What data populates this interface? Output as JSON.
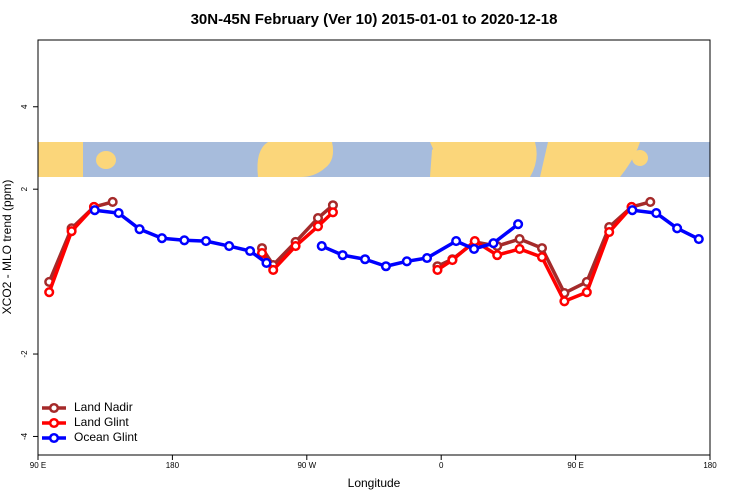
{
  "chart_data": {
    "type": "line",
    "title": "30N-45N February (Ver 10)   2015-01-01 to 2020-12-18",
    "xlabel": "Longitude",
    "ylabel": "XCO2 - MLO trend (ppm)",
    "xlim": [
      90,
      540
    ],
    "ylim": [
      -4.45,
      5.62
    ],
    "xticks": [
      {
        "value": 90,
        "label": "90 E"
      },
      {
        "value": 180,
        "label": "180"
      },
      {
        "value": 270,
        "label": "90 W"
      },
      {
        "value": 360,
        "label": "0"
      },
      {
        "value": 450,
        "label": "90 E"
      },
      {
        "value": 540,
        "label": "180"
      }
    ],
    "yticks": [
      -4,
      -2,
      2,
      4
    ],
    "legend_position": "bottomleft",
    "series": [
      {
        "name": "Land Nadir",
        "color": "#a52a2a",
        "x": [
          97.5,
          112.5,
          127.5,
          140,
          null,
          240,
          247.5,
          262.5,
          277.5,
          287.5,
          null,
          357.5,
          367.5,
          382.5,
          397.5,
          412.5,
          427.5,
          442.5,
          457.5,
          472.5,
          487.5,
          500
        ],
        "values": [
          -0.25,
          1.05,
          1.57,
          1.69,
          null,
          0.57,
          0.16,
          0.72,
          1.3,
          1.61,
          null,
          0.13,
          0.3,
          0.72,
          0.62,
          0.79,
          0.57,
          -0.52,
          -0.25,
          1.08,
          1.57,
          1.69
        ]
      },
      {
        "name": "Land Glint",
        "color": "#ff0000",
        "x": [
          97.5,
          112.5,
          127.5,
          null,
          240,
          247.5,
          262.5,
          277.5,
          287.5,
          null,
          357.5,
          367.5,
          382.5,
          397.5,
          412.5,
          427.5,
          442.5,
          457.5,
          472.5,
          487.5
        ],
        "values": [
          -0.5,
          0.98,
          1.57,
          null,
          0.45,
          0.04,
          0.62,
          1.1,
          1.44,
          null,
          0.04,
          0.28,
          0.74,
          0.4,
          0.55,
          0.35,
          -0.72,
          -0.5,
          0.96,
          1.57
        ]
      },
      {
        "name": "Ocean Glint",
        "color": "#0000ff",
        "x": [
          128,
          144,
          158,
          173,
          188,
          202.5,
          218,
          232,
          243,
          null,
          280,
          294,
          309,
          323,
          337,
          350.5,
          370,
          382,
          395,
          411.5,
          null,
          488,
          504,
          518,
          532.5
        ],
        "values": [
          1.49,
          1.42,
          1.03,
          0.81,
          0.76,
          0.74,
          0.62,
          0.5,
          0.21,
          null,
          0.62,
          0.4,
          0.3,
          0.13,
          0.25,
          0.33,
          0.74,
          0.55,
          0.69,
          1.15,
          null,
          1.49,
          1.42,
          1.05,
          0.79
        ]
      }
    ]
  }
}
